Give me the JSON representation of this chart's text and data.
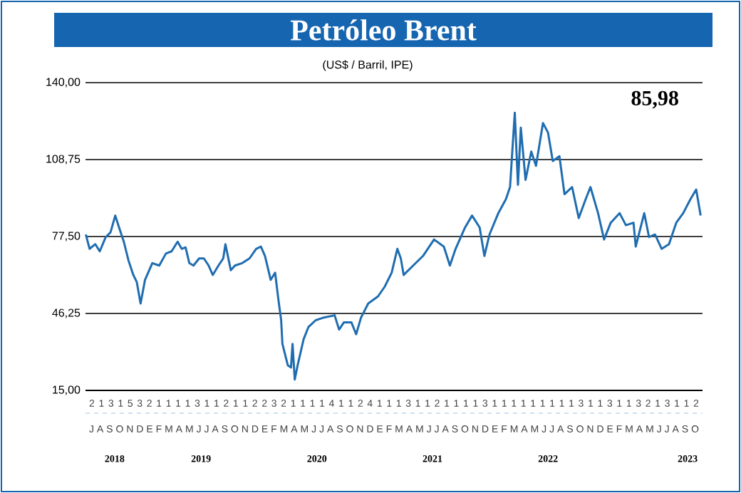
{
  "chart_data": {
    "type": "line",
    "title": "Petróleo Brent",
    "subtitle": "(US$ / Barril, IPE)",
    "annotations": [
      "85,98",
      "2 1 3 1 5 3 2 1 1 1 1 3 1 1 2 1 1 2 2 3 2 1 1 1 1 4 1 1 2 4 1 1 1 3 1 1 2 1 1 1 1 3 1 1 1 1 1 1 1 1 1 3 1 1 3 1 1 3 2 1 3 1 1 2",
      "J A S O N D E F M A M J J A S O N D E F M A M J J A S O N D E F M A M J J A S O N D E F M A M J J A S O N D E F M A M J J A S O"
    ],
    "color": "#1f6db0",
    "grid": "y",
    "xlim": [
      "2018-07-01",
      "2023-11-01"
    ],
    "ylim": [
      15,
      140
    ],
    "yticks": [
      {
        "value": 15,
        "label": "15,00"
      },
      {
        "value": 46.25,
        "label": "46,25"
      },
      {
        "value": 77.5,
        "label": "77,50"
      },
      {
        "value": 108.75,
        "label": "108,75"
      },
      {
        "value": 140,
        "label": "140,00"
      }
    ],
    "x": [
      "2018-07-02",
      "2018-07-14",
      "2018-08-01",
      "2018-08-15",
      "2018-09-03",
      "2018-09-18",
      "2018-10-03",
      "2018-10-15",
      "2018-10-30",
      "2018-11-14",
      "2018-11-29",
      "2018-12-10",
      "2018-12-22",
      "2019-01-05",
      "2019-01-28",
      "2019-02-19",
      "2019-03-12",
      "2019-03-30",
      "2019-04-18",
      "2019-05-01",
      "2019-05-13",
      "2019-05-25",
      "2019-06-07",
      "2019-06-25",
      "2019-07-10",
      "2019-07-25",
      "2019-08-07",
      "2019-08-25",
      "2019-09-09",
      "2019-09-16",
      "2019-10-03",
      "2019-10-16",
      "2019-11-08",
      "2019-12-01",
      "2019-12-22",
      "2020-01-06",
      "2020-01-19",
      "2020-02-06",
      "2020-02-20",
      "2020-03-01",
      "2020-03-10",
      "2020-03-14",
      "2020-03-31",
      "2020-04-10",
      "2020-04-15",
      "2020-04-22",
      "2020-05-01",
      "2020-05-20",
      "2020-06-04",
      "2020-06-27",
      "2020-07-20",
      "2020-08-26",
      "2020-09-09",
      "2020-09-24",
      "2020-10-18",
      "2020-11-02",
      "2020-11-17",
      "2020-12-10",
      "2021-01-10",
      "2021-01-31",
      "2021-02-22",
      "2021-03-12",
      "2021-03-23",
      "2021-04-01",
      "2021-05-01",
      "2021-06-01",
      "2021-07-06",
      "2021-08-06",
      "2021-08-25",
      "2021-09-12",
      "2021-10-12",
      "2021-11-03",
      "2021-11-27",
      "2021-12-12",
      "2021-12-28",
      "2022-01-25",
      "2022-02-18",
      "2022-03-03",
      "2022-03-18",
      "2022-03-28",
      "2022-04-06",
      "2022-04-21",
      "2022-05-09",
      "2022-05-24",
      "2022-06-15",
      "2022-07-01",
      "2022-07-16",
      "2022-08-06",
      "2022-08-22",
      "2022-09-15",
      "2022-10-06",
      "2022-10-28",
      "2022-11-12",
      "2022-12-06",
      "2022-12-25",
      "2023-01-15",
      "2023-02-12",
      "2023-03-04",
      "2023-03-28",
      "2023-04-04",
      "2023-05-01",
      "2023-05-16",
      "2023-06-04",
      "2023-06-25",
      "2023-07-18",
      "2023-08-10",
      "2023-09-01",
      "2023-09-24",
      "2023-10-12",
      "2023-10-26"
    ],
    "values": [
      78.3,
      72.5,
      74.4,
      71.5,
      77.3,
      79.2,
      86.0,
      81.2,
      75.4,
      67.7,
      61.9,
      59.0,
      50.3,
      59.9,
      66.7,
      65.7,
      70.6,
      71.5,
      75.4,
      72.5,
      73.1,
      66.7,
      65.7,
      68.6,
      68.6,
      65.7,
      61.9,
      65.7,
      68.6,
      74.4,
      63.8,
      65.7,
      66.7,
      68.6,
      72.5,
      73.4,
      69.6,
      59.9,
      62.8,
      52.2,
      43.5,
      33.9,
      25.2,
      24.3,
      33.9,
      19.4,
      25.2,
      35.8,
      40.7,
      43.5,
      44.5,
      45.5,
      39.7,
      42.6,
      42.6,
      37.8,
      44.5,
      50.3,
      53.2,
      57.1,
      62.8,
      72.5,
      68.6,
      61.9,
      65.7,
      69.6,
      76.3,
      73.4,
      65.7,
      72.5,
      81.2,
      86.0,
      81.2,
      69.6,
      78.3,
      87.0,
      92.7,
      97.6,
      127.8,
      98.5,
      121.7,
      100.5,
      112.0,
      106.2,
      123.6,
      119.7,
      108.2,
      110.1,
      94.7,
      97.6,
      85.0,
      92.7,
      97.6,
      87.0,
      76.3,
      83.1,
      87.0,
      82.1,
      83.1,
      73.4,
      87.0,
      77.3,
      78.3,
      72.5,
      74.4,
      83.1,
      87.0,
      92.7,
      96.6,
      86.0
    ],
    "xticks": [
      {
        "value": "2018-10-01",
        "label": "2018"
      },
      {
        "value": "2019-07-01",
        "label": "2019"
      },
      {
        "value": "2020-07-01",
        "label": "2020"
      },
      {
        "value": "2021-07-01",
        "label": "2021"
      },
      {
        "value": "2022-07-01",
        "label": "2022"
      },
      {
        "value": "2023-09-15",
        "label": "2023"
      }
    ]
  }
}
